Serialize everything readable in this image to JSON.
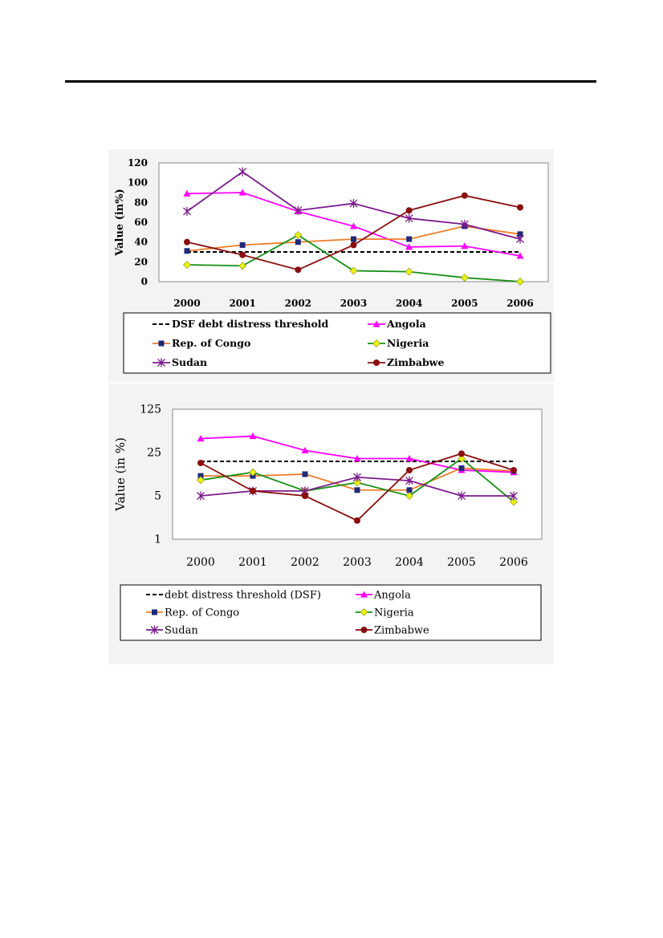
{
  "chart_data": [
    {
      "type": "line",
      "ylabel": "Value (in%)",
      "xlabel": "",
      "x": [
        "2000",
        "2001",
        "2002",
        "2003",
        "2004",
        "2005",
        "2006"
      ],
      "yticks": [
        "0",
        "20",
        "40",
        "60",
        "80",
        "100",
        "120"
      ],
      "ylim": [
        0,
        120
      ],
      "yscale": "linear",
      "grid": false,
      "legend_position": "bottom",
      "series": [
        {
          "name": "DSF debt distress threshold",
          "values": [
            30,
            30,
            30,
            30,
            30,
            30,
            30
          ],
          "color": "#000000",
          "marker": "none",
          "dashed": true
        },
        {
          "name": "Angola",
          "values": [
            89,
            90,
            71,
            56,
            35,
            36,
            26
          ],
          "color": "#ff00ff",
          "marker": "triangle"
        },
        {
          "name": "Rep. of Congo",
          "values": [
            31,
            37,
            40,
            43,
            43,
            56,
            48
          ],
          "color": "#f07c28",
          "marker": "square",
          "marker_color": "#1f2a7a"
        },
        {
          "name": "Nigeria",
          "values": [
            17,
            16,
            47,
            11,
            10,
            4,
            0
          ],
          "color": "#169016",
          "marker": "diamond",
          "marker_color": "#e8f214"
        },
        {
          "name": "Sudan",
          "values": [
            71,
            111,
            72,
            79,
            64,
            58,
            43
          ],
          "color": "#7b1a8c",
          "marker": "star"
        },
        {
          "name": "Zimbabwe",
          "values": [
            40,
            27,
            12,
            37,
            72,
            87,
            75
          ],
          "color": "#8b0d0d",
          "marker": "circle"
        }
      ]
    },
    {
      "type": "line",
      "ylabel": "Value (in %)",
      "xlabel": "",
      "x": [
        "2000",
        "2001",
        "2002",
        "2003",
        "2004",
        "2005",
        "2006"
      ],
      "yticks": [
        "1",
        "5",
        "25",
        "125"
      ],
      "ylim": [
        1,
        125
      ],
      "yscale": "log",
      "grid": false,
      "legend_position": "bottom",
      "series": [
        {
          "name": "debt distress threshold (DSF)",
          "values": [
            18,
            18,
            18,
            18,
            18,
            18,
            18
          ],
          "color": "#000000",
          "marker": "none",
          "dashed": true
        },
        {
          "name": "Angola",
          "values": [
            42,
            46,
            27,
            20,
            20,
            13,
            12
          ],
          "color": "#ff00ff",
          "marker": "triangle"
        },
        {
          "name": "Rep. of Congo",
          "values": [
            10.5,
            10.5,
            11.2,
            6.2,
            6.2,
            14,
            12.6
          ],
          "color": "#f07c28",
          "marker": "square",
          "marker_color": "#1f2a7a"
        },
        {
          "name": "Nigeria",
          "values": [
            9,
            12,
            6,
            8.2,
            5,
            20,
            4
          ],
          "color": "#169016",
          "marker": "diamond",
          "marker_color": "#e8f214"
        },
        {
          "name": "Sudan",
          "values": [
            5,
            6,
            6,
            10,
            8.8,
            5,
            5
          ],
          "color": "#7b1a8c",
          "marker": "star"
        },
        {
          "name": "Zimbabwe",
          "values": [
            17,
            6,
            5,
            2,
            13,
            24,
            13
          ],
          "color": "#8b0d0d",
          "marker": "circle"
        }
      ]
    }
  ]
}
